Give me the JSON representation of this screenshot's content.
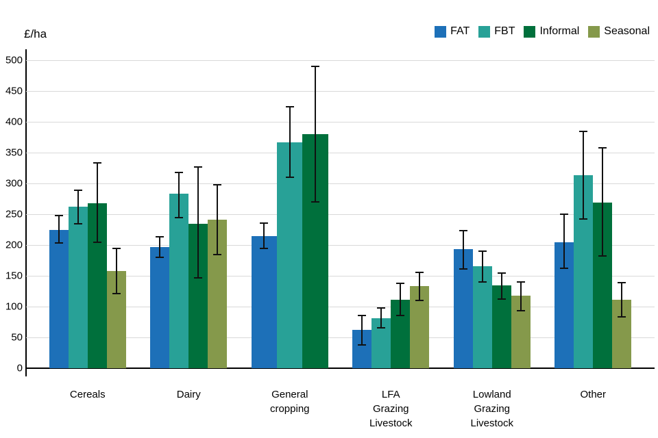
{
  "chart_data": {
    "type": "bar",
    "title": "",
    "ylabel": "£/ha",
    "xlabel": "",
    "ylim": [
      0,
      500
    ],
    "ytick_step": 50,
    "grid": true,
    "legend_position": "top-right",
    "error_bars": true,
    "categories": [
      "Cereals",
      "Dairy",
      "General cropping",
      "LFA Grazing Livestock",
      "Lowland Grazing Livestock",
      "Other"
    ],
    "category_label_lines": [
      [
        "Cereals"
      ],
      [
        "Dairy"
      ],
      [
        "General",
        "cropping"
      ],
      [
        "LFA",
        "Grazing",
        "Livestock"
      ],
      [
        "Lowland",
        "Grazing",
        "Livestock"
      ],
      [
        "Other"
      ]
    ],
    "series": [
      {
        "name": "FAT",
        "color": "#1d70b8",
        "values": [
          225,
          197,
          215,
          62,
          193,
          205
        ],
        "err_low": [
          203,
          180,
          194,
          38,
          161,
          162
        ],
        "err_high": [
          248,
          213,
          236,
          86,
          223,
          250
        ]
      },
      {
        "name": "FBT",
        "color": "#28a197",
        "values": [
          262,
          283,
          367,
          81,
          166,
          313
        ],
        "err_low": [
          234,
          245,
          310,
          66,
          140,
          242
        ],
        "err_high": [
          289,
          318,
          425,
          98,
          190,
          384
        ]
      },
      {
        "name": "Informal",
        "color": "#00703c",
        "values": [
          268,
          235,
          380,
          111,
          135,
          269
        ],
        "err_low": [
          204,
          147,
          270,
          86,
          112,
          182
        ],
        "err_high": [
          333,
          327,
          490,
          138,
          155,
          358
        ]
      },
      {
        "name": "Seasonal",
        "color": "#85994b",
        "values": [
          158,
          241,
          null,
          133,
          118,
          111
        ],
        "err_low": [
          121,
          184,
          null,
          110,
          93,
          83
        ],
        "err_high": [
          195,
          298,
          null,
          156,
          140,
          139
        ]
      }
    ]
  },
  "colors": {
    "gridline": "#d9d9d9",
    "axis": "#000000",
    "error_bar": "#111111",
    "background": "#ffffff",
    "text": "#000000"
  }
}
